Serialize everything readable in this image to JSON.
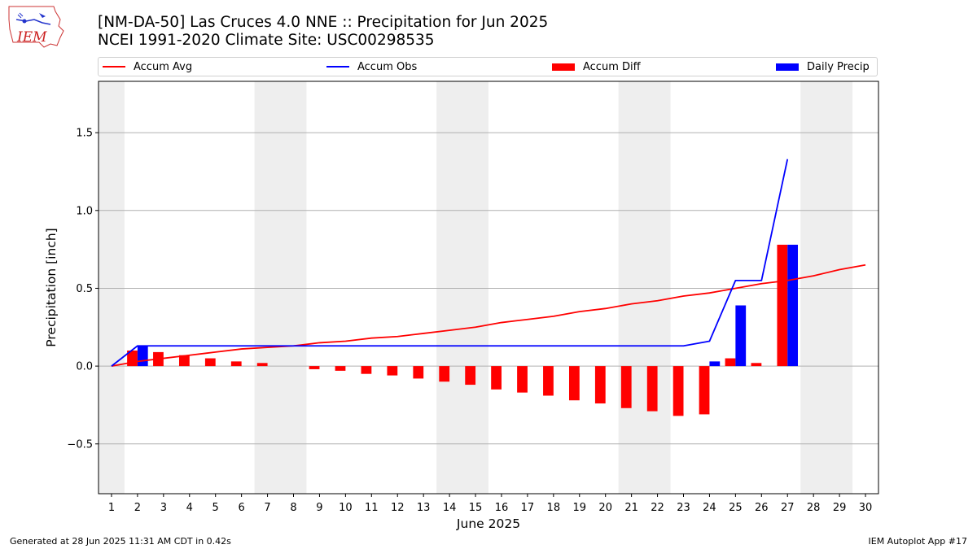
{
  "title_line1": "[NM-DA-50] Las Cruces 4.0 NNE :: Precipitation for Jun 2025",
  "title_line2": "NCEI 1991-2020 Climate Site: USC00298535",
  "logo_text": "IEM",
  "footer_left": "Generated at 28 Jun 2025 11:31 AM CDT in 0.42s",
  "footer_right": "IEM Autoplot App #17",
  "colors": {
    "avg": "#ff0000",
    "obs": "#0000ff",
    "diff": "#ff0000",
    "daily": "#0000ff",
    "weekend": "#eeeeee",
    "grid": "#b0b0b0"
  },
  "legend": {
    "avg": "Accum Avg",
    "obs": "Accum Obs",
    "diff": "Accum Diff",
    "daily": "Daily Precip"
  },
  "chart_data": {
    "type": "bar",
    "xlabel": "June 2025",
    "ylabel": "Precipitation [inch]",
    "xlim": [
      0.5,
      30.5
    ],
    "ylim": [
      -0.82,
      1.83
    ],
    "yticks": [
      -0.5,
      0.0,
      0.5,
      1.0,
      1.5
    ],
    "ytick_labels": [
      "−0.5",
      "0.0",
      "0.5",
      "1.0",
      "1.5"
    ],
    "days": [
      1,
      2,
      3,
      4,
      5,
      6,
      7,
      8,
      9,
      10,
      11,
      12,
      13,
      14,
      15,
      16,
      17,
      18,
      19,
      20,
      21,
      22,
      23,
      24,
      25,
      26,
      27,
      28,
      29,
      30
    ],
    "weekend_shading": [
      [
        0.5,
        1.5
      ],
      [
        6.5,
        8.5
      ],
      [
        13.5,
        15.5
      ],
      [
        20.5,
        22.5
      ],
      [
        27.5,
        29.5
      ]
    ],
    "grid": "horizontal",
    "legend_placement": "top",
    "series": [
      {
        "name": "Accum Avg",
        "kind": "line",
        "days": [
          1,
          2,
          3,
          4,
          5,
          6,
          7,
          8,
          9,
          10,
          11,
          12,
          13,
          14,
          15,
          16,
          17,
          18,
          19,
          20,
          21,
          22,
          23,
          24,
          25,
          26,
          27,
          28,
          29,
          30
        ],
        "values": [
          0.0,
          0.03,
          0.05,
          0.07,
          0.09,
          0.11,
          0.12,
          0.13,
          0.15,
          0.16,
          0.18,
          0.19,
          0.21,
          0.23,
          0.25,
          0.28,
          0.3,
          0.32,
          0.35,
          0.37,
          0.4,
          0.42,
          0.45,
          0.47,
          0.5,
          0.53,
          0.55,
          0.58,
          0.62,
          0.65
        ]
      },
      {
        "name": "Accum Obs",
        "kind": "line",
        "days": [
          1,
          2,
          3,
          4,
          5,
          6,
          7,
          8,
          9,
          10,
          11,
          12,
          13,
          14,
          15,
          16,
          17,
          18,
          19,
          20,
          21,
          22,
          23,
          24,
          25,
          26,
          27
        ],
        "values": [
          0.0,
          0.13,
          0.13,
          0.13,
          0.13,
          0.13,
          0.13,
          0.13,
          0.13,
          0.13,
          0.13,
          0.13,
          0.13,
          0.13,
          0.13,
          0.13,
          0.13,
          0.13,
          0.13,
          0.13,
          0.13,
          0.13,
          0.13,
          0.16,
          0.55,
          0.55,
          1.33
        ]
      },
      {
        "name": "Accum Diff",
        "kind": "bar",
        "days": [
          2,
          3,
          4,
          5,
          6,
          7,
          9,
          10,
          11,
          12,
          13,
          14,
          15,
          16,
          17,
          18,
          19,
          20,
          21,
          22,
          23,
          24,
          25,
          26,
          27
        ],
        "values": [
          0.1,
          0.09,
          0.07,
          0.05,
          0.03,
          0.02,
          -0.02,
          -0.03,
          -0.05,
          -0.06,
          -0.08,
          -0.1,
          -0.12,
          -0.15,
          -0.17,
          -0.19,
          -0.22,
          -0.24,
          -0.27,
          -0.29,
          -0.32,
          -0.31,
          0.05,
          0.02,
          0.78
        ]
      },
      {
        "name": "Daily Precip",
        "kind": "bar",
        "days": [
          2,
          24,
          25,
          27
        ],
        "values": [
          0.13,
          0.03,
          0.39,
          0.78
        ]
      }
    ]
  }
}
